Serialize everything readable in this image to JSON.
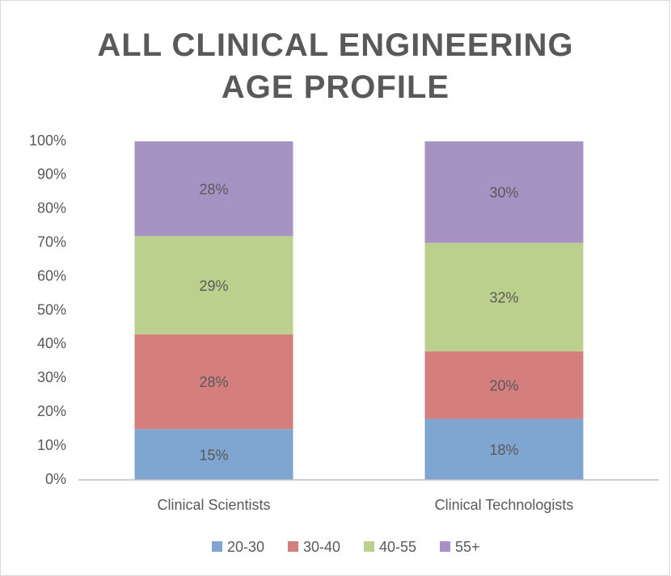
{
  "chart_data": {
    "type": "stacked_bar",
    "title": "ALL CLINICAL ENGINEERING AGE PROFILE",
    "categories": [
      "Clinical Scientists",
      "Clinical Technologists"
    ],
    "series": [
      {
        "name": "20-30",
        "color": "#7fa5d1",
        "values": [
          15,
          18
        ],
        "value_labels": [
          "15%",
          "18%"
        ]
      },
      {
        "name": "30-40",
        "color": "#d47f7d",
        "values": [
          28,
          20
        ],
        "value_labels": [
          "28%",
          "20%"
        ]
      },
      {
        "name": "40-55",
        "color": "#bbd08c",
        "values": [
          29,
          32
        ],
        "value_labels": [
          "29%",
          "32%"
        ]
      },
      {
        "name": "55+",
        "color": "#a692c3",
        "values": [
          28,
          30
        ],
        "value_labels": [
          "28%",
          "30%"
        ]
      }
    ],
    "ylim": [
      0,
      100
    ],
    "yticks": [
      {
        "value": 0,
        "label": "0%"
      },
      {
        "value": 10,
        "label": "10%"
      },
      {
        "value": 20,
        "label": "20%"
      },
      {
        "value": 30,
        "label": "30%"
      },
      {
        "value": 40,
        "label": "40%"
      },
      {
        "value": 50,
        "label": "50%"
      },
      {
        "value": 60,
        "label": "60%"
      },
      {
        "value": 70,
        "label": "70%"
      },
      {
        "value": 80,
        "label": "80%"
      },
      {
        "value": 90,
        "label": "90%"
      },
      {
        "value": 100,
        "label": "100%"
      }
    ],
    "grid": false,
    "legend": "bottom"
  }
}
